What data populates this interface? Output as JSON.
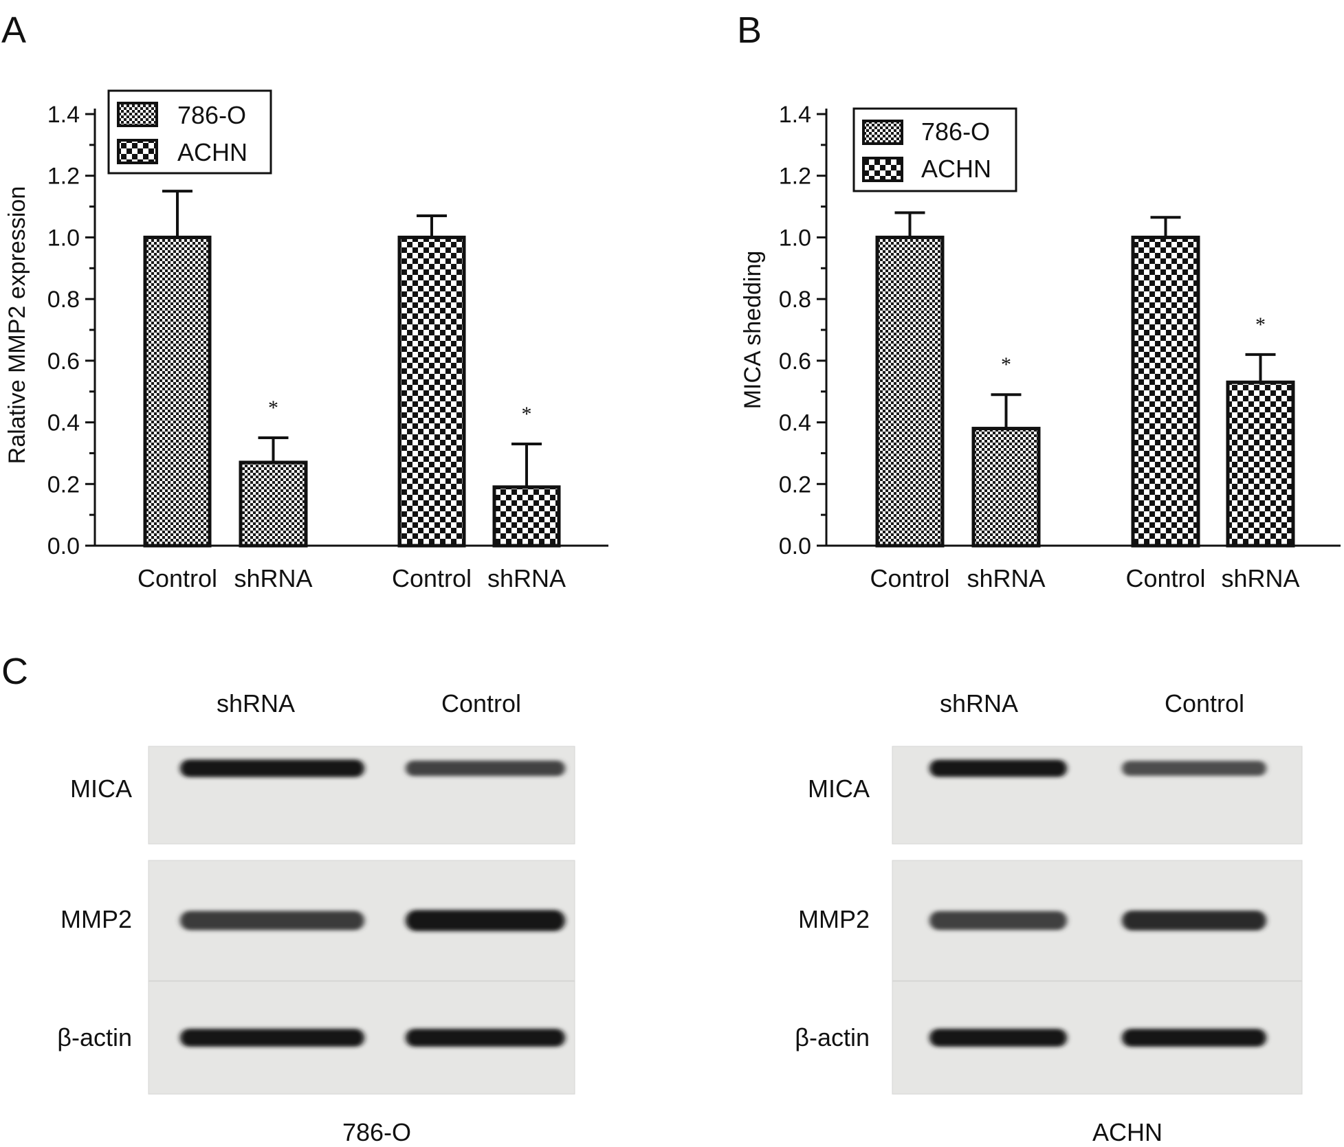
{
  "panel_labels": [
    "A",
    "B",
    "C"
  ],
  "chart_data": [
    {
      "panel": "A",
      "type": "bar",
      "ylabel": "Ralative MMP2 expression",
      "xlabel": "",
      "ylim": [
        0,
        1.4
      ],
      "yticks": [
        "0.0",
        "0.2",
        "0.4",
        "0.6",
        "0.8",
        "1.0",
        "1.2",
        "1.4"
      ],
      "legend": {
        "placement": "top-left",
        "entries": [
          "786-O",
          "ACHN"
        ]
      },
      "groups": [
        {
          "series": "786-O",
          "categories": [
            "Control",
            "shRNA"
          ],
          "values": [
            1.0,
            0.27
          ],
          "errors": [
            0.15,
            0.08
          ],
          "significance": [
            "",
            "*"
          ]
        },
        {
          "series": "ACHN",
          "categories": [
            "Control",
            "shRNA"
          ],
          "values": [
            1.0,
            0.19
          ],
          "errors": [
            0.07,
            0.14
          ],
          "significance": [
            "",
            "*"
          ]
        }
      ]
    },
    {
      "panel": "B",
      "type": "bar",
      "ylabel": "MICA shedding",
      "xlabel": "",
      "ylim": [
        0,
        1.4
      ],
      "yticks": [
        "0.0",
        "0.2",
        "0.4",
        "0.6",
        "0.8",
        "1.0",
        "1.2",
        "1.4"
      ],
      "legend": {
        "placement": "top-left",
        "entries": [
          "786-O",
          "ACHN"
        ]
      },
      "groups": [
        {
          "series": "786-O",
          "categories": [
            "Control",
            "shRNA"
          ],
          "values": [
            1.0,
            0.38
          ],
          "errors": [
            0.08,
            0.11
          ],
          "significance": [
            "",
            "*"
          ]
        },
        {
          "series": "ACHN",
          "categories": [
            "Control",
            "shRNA"
          ],
          "values": [
            1.0,
            0.53
          ],
          "errors": [
            0.065,
            0.09
          ],
          "significance": [
            "",
            "*"
          ]
        }
      ]
    }
  ],
  "blots": [
    {
      "cell_line": "786-O",
      "lanes": [
        "shRNA",
        "Control"
      ],
      "rows": [
        {
          "protein": "MICA",
          "intensity": [
            0.95,
            0.7
          ]
        },
        {
          "protein": "MMP2",
          "intensity": [
            0.75,
            0.92
          ]
        },
        {
          "protein": "β-actin",
          "intensity": [
            0.95,
            0.95
          ]
        }
      ]
    },
    {
      "cell_line": "ACHN",
      "lanes": [
        "shRNA",
        "Control"
      ],
      "rows": [
        {
          "protein": "MICA",
          "intensity": [
            0.92,
            0.65
          ]
        },
        {
          "protein": "MMP2",
          "intensity": [
            0.72,
            0.82
          ]
        },
        {
          "protein": "β-actin",
          "intensity": [
            0.95,
            0.95
          ]
        }
      ]
    }
  ]
}
